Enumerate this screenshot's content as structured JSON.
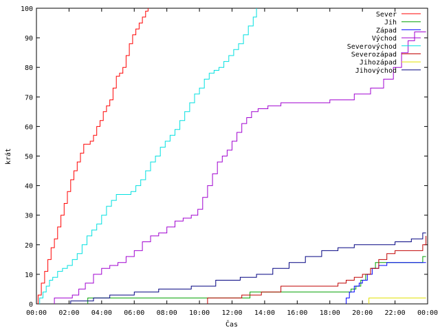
{
  "chart_data": {
    "type": "line",
    "title": "",
    "xlabel": "Čas",
    "ylabel": "krát",
    "xlim": [
      0,
      24
    ],
    "ylim": [
      0,
      100
    ],
    "grid": false,
    "legend_position": "top-right",
    "x_ticks": [
      {
        "v": 0,
        "label": "00:00"
      },
      {
        "v": 2,
        "label": "02:00"
      },
      {
        "v": 4,
        "label": "04:00"
      },
      {
        "v": 6,
        "label": "06:00"
      },
      {
        "v": 8,
        "label": "08:00"
      },
      {
        "v": 10,
        "label": "10:00"
      },
      {
        "v": 12,
        "label": "12:00"
      },
      {
        "v": 14,
        "label": "14:00"
      },
      {
        "v": 16,
        "label": "16:00"
      },
      {
        "v": 18,
        "label": "18:00"
      },
      {
        "v": 20,
        "label": "20:00"
      },
      {
        "v": 22,
        "label": "22:00"
      },
      {
        "v": 24,
        "label": "00:00"
      }
    ],
    "y_ticks": [
      {
        "v": 0,
        "label": "0"
      },
      {
        "v": 10,
        "label": "10"
      },
      {
        "v": 20,
        "label": "20"
      },
      {
        "v": 30,
        "label": "30"
      },
      {
        "v": 40,
        "label": "40"
      },
      {
        "v": 50,
        "label": "50"
      },
      {
        "v": 60,
        "label": "60"
      },
      {
        "v": 70,
        "label": "70"
      },
      {
        "v": 80,
        "label": "80"
      },
      {
        "v": 90,
        "label": "90"
      },
      {
        "v": 100,
        "label": "100"
      }
    ],
    "series": [
      {
        "name": "Sever",
        "color": "#ff0000",
        "step": true,
        "x": [
          0.1,
          0.3,
          0.5,
          0.7,
          0.9,
          1.1,
          1.3,
          1.5,
          1.7,
          1.9,
          2.1,
          2.3,
          2.5,
          2.7,
          2.9,
          3.1,
          3.3,
          3.5,
          3.7,
          3.9,
          4.1,
          4.3,
          4.5,
          4.7,
          4.9,
          5.1,
          5.3,
          5.5,
          5.7,
          5.9,
          6.1,
          6.3,
          6.5,
          6.7,
          6.85
        ],
        "y": [
          3,
          7,
          11,
          15,
          19,
          22,
          26,
          30,
          34,
          38,
          42,
          45,
          48,
          51,
          54,
          54,
          55,
          57,
          60,
          62,
          65,
          67,
          69,
          73,
          77,
          78,
          80,
          84,
          88,
          91,
          93,
          95,
          97,
          99,
          100
        ]
      },
      {
        "name": "Jih",
        "color": "#00a000",
        "step": true,
        "x": [
          3.15,
          10.2,
          13.1,
          19.3,
          19.6,
          19.9,
          20.2,
          20.5,
          20.8,
          23.7,
          23.9
        ],
        "y": [
          2,
          2,
          4,
          5,
          6,
          8,
          10,
          12,
          14,
          16,
          16
        ]
      },
      {
        "name": "Západ",
        "color": "#0000ff",
        "step": true,
        "x": [
          19.0,
          19.2,
          19.5,
          19.8,
          20.0,
          20.3,
          20.6,
          21.0,
          21.5,
          22.0,
          23.9
        ],
        "y": [
          2,
          4,
          6,
          7,
          8,
          10,
          12,
          13,
          14,
          14,
          14
        ]
      },
      {
        "name": "Východ",
        "color": "#a000d0",
        "step": true,
        "x": [
          1.1,
          1.8,
          2.2,
          2.6,
          3.0,
          3.5,
          4.0,
          4.5,
          5.0,
          5.5,
          6.0,
          6.5,
          7.0,
          7.5,
          8.0,
          8.5,
          9.0,
          9.5,
          9.9,
          10.2,
          10.5,
          10.8,
          11.1,
          11.4,
          11.7,
          12.0,
          12.3,
          12.6,
          12.9,
          13.2,
          13.6,
          14.2,
          15.0,
          16.5,
          18.0,
          19.5,
          20.5,
          21.3,
          21.9,
          22.4,
          22.8,
          23.2,
          23.9
        ],
        "y": [
          2,
          2,
          3,
          5,
          7,
          10,
          12,
          13,
          14,
          16,
          18,
          21,
          23,
          24,
          26,
          28,
          29,
          30,
          32,
          36,
          40,
          44,
          48,
          50,
          52,
          55,
          58,
          61,
          63,
          65,
          66,
          67,
          68,
          68,
          69,
          71,
          73,
          76,
          80,
          85,
          89,
          92,
          92
        ]
      },
      {
        "name": "Severovýchod",
        "color": "#00e0e0",
        "step": true,
        "x": [
          0.2,
          0.4,
          0.6,
          0.8,
          1.0,
          1.3,
          1.6,
          1.9,
          2.2,
          2.5,
          2.8,
          3.1,
          3.4,
          3.7,
          4.0,
          4.3,
          4.6,
          4.9,
          5.2,
          5.5,
          5.8,
          6.1,
          6.4,
          6.7,
          7.0,
          7.3,
          7.6,
          7.9,
          8.2,
          8.5,
          8.8,
          9.1,
          9.4,
          9.7,
          10.0,
          10.3,
          10.6,
          10.9,
          11.2,
          11.5,
          11.8,
          12.1,
          12.4,
          12.7,
          13.0,
          13.3,
          13.5
        ],
        "y": [
          2,
          4,
          6,
          8,
          9,
          11,
          12,
          13,
          15,
          17,
          20,
          23,
          25,
          27,
          30,
          33,
          35,
          37,
          37,
          37,
          38,
          40,
          42,
          45,
          48,
          50,
          53,
          55,
          57,
          59,
          62,
          65,
          68,
          71,
          73,
          76,
          78,
          79,
          80,
          82,
          84,
          86,
          88,
          91,
          94,
          97,
          100
        ]
      },
      {
        "name": "Severozápad",
        "color": "#c00000",
        "step": true,
        "x": [
          10.5,
          12.6,
          13.8,
          15.0,
          18.5,
          19.0,
          19.5,
          20.0,
          20.5,
          21.0,
          21.5,
          22.0,
          22.5,
          23.0,
          23.7,
          23.9
        ],
        "y": [
          2,
          3,
          4,
          6,
          7,
          8,
          9,
          10,
          12,
          15,
          17,
          18,
          18,
          18,
          20,
          23
        ]
      },
      {
        "name": "Jihozápad",
        "color": "#e0e000",
        "step": true,
        "x": [
          20.4,
          23.9
        ],
        "y": [
          2,
          2
        ]
      },
      {
        "name": "Jihovýchod",
        "color": "#000080",
        "step": true,
        "x": [
          2.1,
          3.5,
          4.5,
          6.0,
          7.5,
          9.5,
          11.0,
          12.5,
          13.5,
          14.5,
          15.5,
          16.5,
          17.5,
          18.5,
          19.5,
          21.0,
          22.0,
          23.0,
          23.7,
          23.9
        ],
        "y": [
          1,
          2,
          3,
          4,
          5,
          6,
          8,
          9,
          10,
          12,
          14,
          16,
          18,
          19,
          20,
          20,
          21,
          22,
          24,
          24
        ]
      }
    ]
  }
}
